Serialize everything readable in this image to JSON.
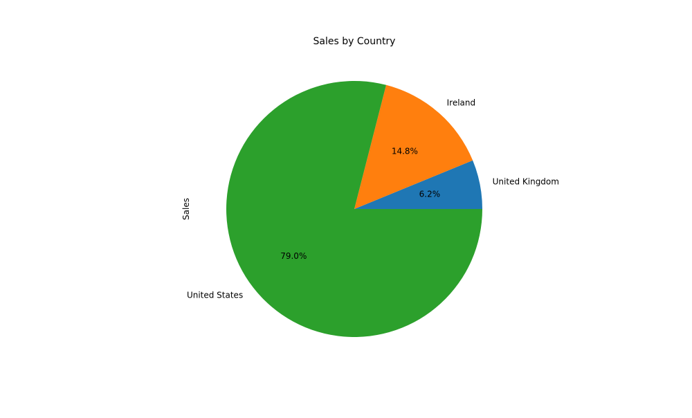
{
  "chart_data": {
    "type": "pie",
    "title": "Sales by Country",
    "ylabel": "Sales",
    "xlabel": "",
    "slices": [
      {
        "label": "United Kingdom",
        "value": 6.2,
        "pct_label": "6.2%",
        "color": "#1f77b4"
      },
      {
        "label": "Ireland",
        "value": 14.8,
        "pct_label": "14.8%",
        "color": "#ff7f0e"
      },
      {
        "label": "United States",
        "value": 79.0,
        "pct_label": "79.0%",
        "color": "#2ca02c"
      }
    ],
    "start_angle_deg": 0,
    "direction": "counterclockwise"
  }
}
